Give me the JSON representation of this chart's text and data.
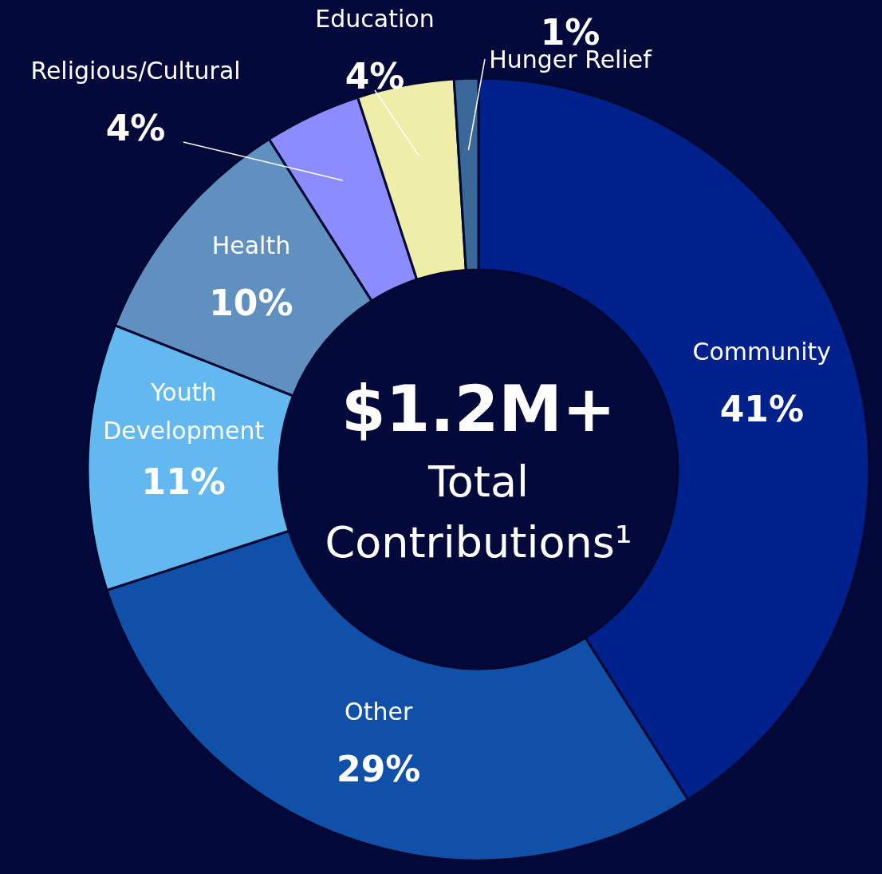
{
  "chart_data": {
    "type": "donut",
    "categories": [
      "Community",
      "Other",
      "Youth Development",
      "Health",
      "Religious/Cultural",
      "Education",
      "Hunger Relief"
    ],
    "values": [
      41,
      29,
      11,
      10,
      4,
      4,
      1
    ],
    "value_labels": [
      "41%",
      "29%",
      "11%",
      "10%",
      "4%",
      "4%",
      "1%"
    ],
    "colors": [
      "#00208c",
      "#1150a8",
      "#63b8f0",
      "#6090c0",
      "#8c8cff",
      "#eeeea8",
      "#3a6898"
    ],
    "annotations": [
      "$1.2M+",
      "Total Contributions¹"
    ]
  }
}
